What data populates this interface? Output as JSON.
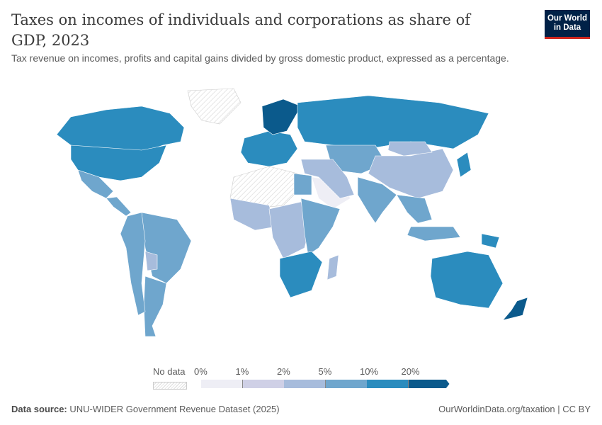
{
  "header": {
    "title": "Taxes on incomes of individuals and corporations as share of GDP, 2023",
    "subtitle": "Tax revenue on incomes, profits and capital gains divided by gross domestic product, expressed as a percentage.",
    "logo_line1": "Our World",
    "logo_line2": "in Data"
  },
  "legend": {
    "no_data_label": "No data",
    "ticks": [
      "0%",
      "1%",
      "2%",
      "5%",
      "10%",
      "20%"
    ],
    "bin_colors": [
      "#eeeef5",
      "#cfd0e6",
      "#a7bcdc",
      "#6fa6cd",
      "#2b8cbe",
      "#0b5a8c"
    ],
    "no_data_color": "#e6e6e6"
  },
  "chart_data": {
    "type": "choropleth",
    "year": 2023,
    "bins": [
      "0-1%",
      "1-2%",
      "2-5%",
      "5-10%",
      "10-20%",
      ">20%"
    ],
    "regions": [
      {
        "name": "Canada",
        "bin": 4
      },
      {
        "name": "United States",
        "bin": 4
      },
      {
        "name": "Mexico",
        "bin": 3
      },
      {
        "name": "Central America",
        "bin": 3
      },
      {
        "name": "Brazil",
        "bin": 3
      },
      {
        "name": "Argentina",
        "bin": 3
      },
      {
        "name": "Bolivia",
        "bin": 2
      },
      {
        "name": "Andean South America",
        "bin": 3
      },
      {
        "name": "Greenland",
        "bin": -1
      },
      {
        "name": "Western Europe",
        "bin": 4
      },
      {
        "name": "Scandinavia",
        "bin": 5
      },
      {
        "name": "Russia",
        "bin": 4
      },
      {
        "name": "Central Asia",
        "bin": 3
      },
      {
        "name": "China",
        "bin": 2
      },
      {
        "name": "Mongolia",
        "bin": 2
      },
      {
        "name": "India",
        "bin": 3
      },
      {
        "name": "Japan",
        "bin": 4
      },
      {
        "name": "Saudi Arabia",
        "bin": 0
      },
      {
        "name": "Middle East",
        "bin": 2
      },
      {
        "name": "North Africa",
        "bin": -1
      },
      {
        "name": "Egypt",
        "bin": 3
      },
      {
        "name": "West Africa",
        "bin": 2
      },
      {
        "name": "Central Africa",
        "bin": 2
      },
      {
        "name": "East Africa",
        "bin": 3
      },
      {
        "name": "Southern Africa",
        "bin": 4
      },
      {
        "name": "Madagascar",
        "bin": 2
      },
      {
        "name": "Southeast Asia",
        "bin": 3
      },
      {
        "name": "Indonesia",
        "bin": 3
      },
      {
        "name": "Papua New Guinea",
        "bin": 4
      },
      {
        "name": "Australia",
        "bin": 4
      },
      {
        "name": "New Zealand",
        "bin": 5
      }
    ]
  },
  "footer": {
    "source_label": "Data source:",
    "source": "UNU-WIDER Government Revenue Dataset (2025)",
    "link": "OurWorldinData.org/taxation | CC BY"
  }
}
